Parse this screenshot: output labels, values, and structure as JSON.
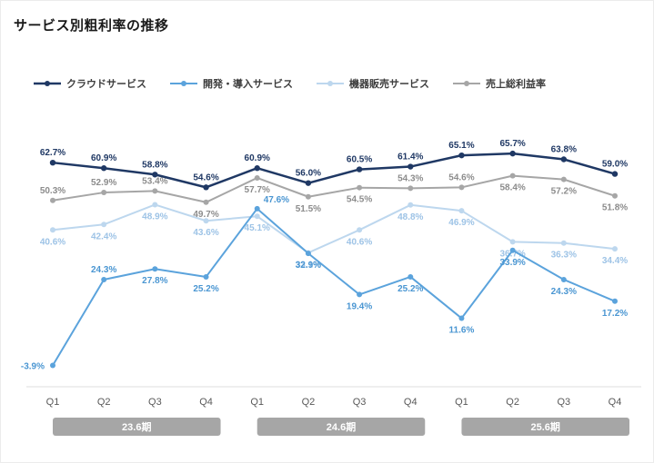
{
  "title": "サービス別粗利率の推移",
  "colors": {
    "background": "#ffffff",
    "axis_line": "#dcdcdc",
    "tick_label": "#595959",
    "period_band": "#a6a6a6",
    "period_text": "#ffffff"
  },
  "chart_data": {
    "type": "line",
    "title": "サービス別粗利率の推移",
    "unit": "%",
    "grid": false,
    "legend_position": "top-left",
    "ylim": [
      -10,
      72
    ],
    "x_tick_labels": [
      "Q1",
      "Q2",
      "Q3",
      "Q4",
      "Q1",
      "Q2",
      "Q3",
      "Q4",
      "Q1",
      "Q2",
      "Q3",
      "Q4"
    ],
    "period_groups": [
      {
        "label": "23.6期",
        "quarters": [
          0,
          3
        ]
      },
      {
        "label": "24.6期",
        "quarters": [
          4,
          7
        ]
      },
      {
        "label": "25.6期",
        "quarters": [
          8,
          11
        ]
      }
    ],
    "series": [
      {
        "name": "クラウドサービス",
        "color": "#1f3864",
        "label_color": "#1f3864",
        "line_width": 2.5,
        "values": [
          62.7,
          60.9,
          58.8,
          54.6,
          60.9,
          56.0,
          60.5,
          61.4,
          65.1,
          65.7,
          63.8,
          59.0
        ],
        "label_positions": [
          "above",
          "above",
          "above",
          "above",
          "above",
          "above",
          "above",
          "above",
          "above",
          "above",
          "above",
          "above"
        ]
      },
      {
        "name": "開発・導入サービス",
        "color": "#5ba3dc",
        "label_color": "#4a96d2",
        "line_width": 2,
        "values": [
          -3.9,
          24.3,
          27.8,
          25.2,
          47.6,
          32.9,
          19.4,
          25.2,
          11.6,
          33.9,
          24.3,
          17.2
        ],
        "label_positions": [
          "left",
          "above",
          "below",
          "below",
          "above-right",
          "below",
          "below",
          "below",
          "below",
          "below",
          "below",
          "below"
        ]
      },
      {
        "name": "機器販売サービス",
        "color": "#bdd7ee",
        "label_color": "#9dc3e6",
        "line_width": 2,
        "values": [
          40.6,
          42.4,
          48.9,
          43.6,
          45.1,
          33.1,
          40.6,
          48.8,
          46.9,
          36.7,
          36.3,
          34.4
        ],
        "label_positions": [
          "below",
          "below",
          "below",
          "below",
          "below",
          "below",
          "below",
          "below",
          "below",
          "below",
          "below",
          "below"
        ]
      },
      {
        "name": "売上総利益率",
        "color": "#a6a6a6",
        "label_color": "#8c8c8c",
        "line_width": 2,
        "values": [
          50.3,
          52.9,
          53.4,
          49.7,
          57.7,
          51.5,
          54.5,
          54.3,
          54.6,
          58.4,
          57.2,
          51.8
        ],
        "label_positions": [
          "above",
          "above",
          "above",
          "below",
          "below",
          "below",
          "below",
          "above",
          "above",
          "below",
          "below",
          "below"
        ]
      }
    ]
  }
}
